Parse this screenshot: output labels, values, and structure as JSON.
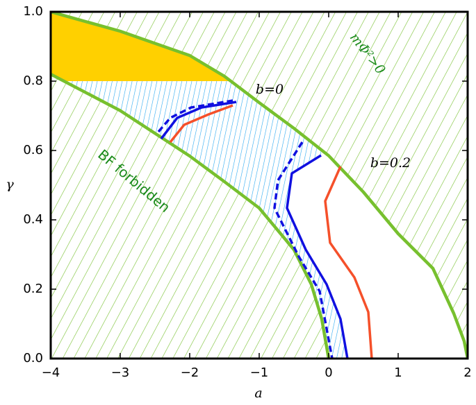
{
  "chart_data": {
    "type": "line",
    "xlabel": "a",
    "ylabel": "γ",
    "xlim": [
      -4,
      2
    ],
    "ylim": [
      0,
      1
    ],
    "xticks": [
      -4,
      -3,
      -2,
      -1,
      0,
      1,
      2
    ],
    "yticks": [
      {
        "value": 0,
        "label": "0.0"
      },
      {
        "value": 0.2,
        "label": "0.2"
      },
      {
        "value": 0.4,
        "label": "0.4"
      },
      {
        "value": 0.6,
        "label": "0.6"
      },
      {
        "value": 0.8,
        "label": "0.8"
      },
      {
        "value": 1.0,
        "label": "1.0"
      }
    ],
    "annotations": [
      "b=0",
      "b=0.2",
      "BF forbidden",
      "mΦ²>0"
    ],
    "series": [
      {
        "color": "#77c02e",
        "dash": false,
        "x": [
          -4,
          -3,
          -2,
          -1.5,
          -1,
          -0.5,
          0,
          0.5,
          1,
          1.5,
          1.8,
          1.95,
          2
        ],
        "y": [
          1.0,
          0.944,
          0.874,
          0.814,
          0.738,
          0.664,
          0.585,
          0.48,
          0.36,
          0.26,
          0.13,
          0.05,
          0
        ]
      },
      {
        "color": "#77c02e",
        "dash": false,
        "x": [
          -4,
          -3,
          -2,
          -1.5,
          -1,
          -0.5,
          -0.25,
          -0.1,
          0
        ],
        "y": [
          0.82,
          0.715,
          0.584,
          0.51,
          0.434,
          0.314,
          0.214,
          0.114,
          0
        ]
      },
      {
        "color": "#1010e0",
        "dash": false,
        "x": [
          -2.41,
          -2.18,
          -1.83,
          -1.33
        ],
        "y": [
          0.634,
          0.694,
          0.724,
          0.74
        ]
      },
      {
        "color": "#1010e0",
        "dash": true,
        "x": [
          -2.45,
          -2.28,
          -1.98,
          -1.38
        ],
        "y": [
          0.654,
          0.694,
          0.724,
          0.744
        ]
      },
      {
        "color": "#f5502a",
        "dash": false,
        "x": [
          -2.28,
          -2.08,
          -1.73,
          -1.38
        ],
        "y": [
          0.624,
          0.674,
          0.704,
          0.73
        ]
      },
      {
        "color": "#1010e0",
        "dash": false,
        "x": [
          -0.11,
          -0.53,
          -0.6,
          -0.33,
          -0.03,
          0.17,
          0.27
        ],
        "y": [
          0.586,
          0.534,
          0.434,
          0.314,
          0.214,
          0.114,
          0
        ]
      },
      {
        "color": "#1010e0",
        "dash": true,
        "x": [
          -0.38,
          -0.73,
          -0.78,
          -0.43,
          -0.13,
          0.05
        ],
        "y": [
          0.624,
          0.514,
          0.434,
          0.294,
          0.194,
          0
        ]
      },
      {
        "color": "#f5502a",
        "dash": false,
        "x": [
          0.17,
          -0.05,
          0.02,
          0.37,
          0.57,
          0.62
        ],
        "y": [
          0.554,
          0.454,
          0.334,
          0.234,
          0.134,
          0
        ]
      }
    ]
  }
}
